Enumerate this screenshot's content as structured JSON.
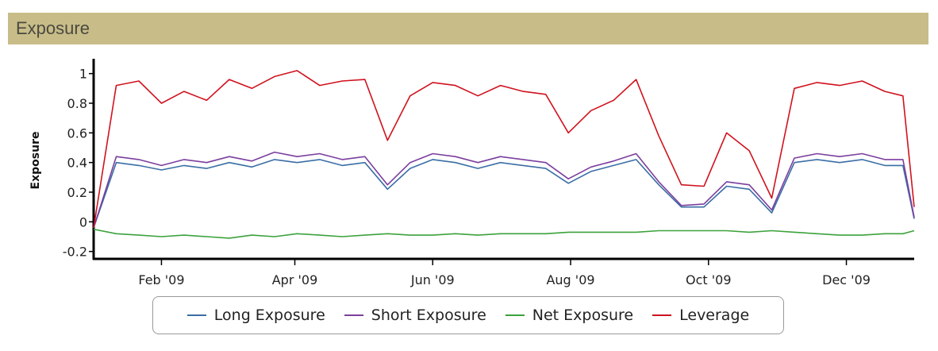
{
  "header": {
    "title": "Exposure"
  },
  "chart_data": {
    "type": "line",
    "ylabel": "Exposure",
    "xlabel": "",
    "ylim": [
      -0.25,
      1.1
    ],
    "yticks": [
      -0.2,
      0,
      0.2,
      0.4,
      0.6,
      0.8,
      1
    ],
    "ytick_labels": [
      "-0.2",
      "0",
      "0.2",
      "0.4",
      "0.6",
      "0.8",
      "1"
    ],
    "xlim": [
      "2009-01-02",
      "2009-12-31"
    ],
    "xticks": [
      "2009-02-01",
      "2009-04-01",
      "2009-06-01",
      "2009-08-01",
      "2009-10-01",
      "2009-12-01"
    ],
    "xtick_labels": [
      "Feb '09",
      "Apr '09",
      "Jun '09",
      "Aug '09",
      "Oct '09",
      "Dec '09"
    ],
    "legend_position": "bottom",
    "grid": false,
    "x": [
      "2009-01-02",
      "2009-01-12",
      "2009-01-22",
      "2009-02-01",
      "2009-02-11",
      "2009-02-21",
      "2009-03-03",
      "2009-03-13",
      "2009-03-23",
      "2009-04-02",
      "2009-04-12",
      "2009-04-22",
      "2009-05-02",
      "2009-05-12",
      "2009-05-22",
      "2009-06-01",
      "2009-06-11",
      "2009-06-21",
      "2009-07-01",
      "2009-07-11",
      "2009-07-21",
      "2009-07-31",
      "2009-08-10",
      "2009-08-20",
      "2009-08-30",
      "2009-09-09",
      "2009-09-19",
      "2009-09-29",
      "2009-10-09",
      "2009-10-19",
      "2009-10-29",
      "2009-11-08",
      "2009-11-18",
      "2009-11-28",
      "2009-12-08",
      "2009-12-18",
      "2009-12-26",
      "2009-12-31"
    ],
    "series": [
      {
        "name": "Long Exposure",
        "color": "#3a6ea5",
        "values": [
          -0.04,
          0.4,
          0.38,
          0.35,
          0.38,
          0.36,
          0.4,
          0.37,
          0.42,
          0.4,
          0.42,
          0.38,
          0.4,
          0.22,
          0.36,
          0.42,
          0.4,
          0.36,
          0.4,
          0.38,
          0.36,
          0.26,
          0.34,
          0.38,
          0.42,
          0.25,
          0.1,
          0.1,
          0.24,
          0.22,
          0.06,
          0.4,
          0.42,
          0.4,
          0.42,
          0.38,
          0.38,
          0.02
        ]
      },
      {
        "name": "Short Exposure",
        "color": "#7b3f9e",
        "values": [
          -0.04,
          0.44,
          0.42,
          0.38,
          0.42,
          0.4,
          0.44,
          0.41,
          0.47,
          0.44,
          0.46,
          0.42,
          0.44,
          0.25,
          0.4,
          0.46,
          0.44,
          0.4,
          0.44,
          0.42,
          0.4,
          0.29,
          0.37,
          0.41,
          0.46,
          0.27,
          0.11,
          0.12,
          0.27,
          0.25,
          0.08,
          0.43,
          0.46,
          0.44,
          0.46,
          0.42,
          0.42,
          0.03
        ]
      },
      {
        "name": "Net Exposure",
        "color": "#3ca23c",
        "values": [
          -0.05,
          -0.08,
          -0.09,
          -0.1,
          -0.09,
          -0.1,
          -0.11,
          -0.09,
          -0.1,
          -0.08,
          -0.09,
          -0.1,
          -0.09,
          -0.08,
          -0.09,
          -0.09,
          -0.08,
          -0.09,
          -0.08,
          -0.08,
          -0.08,
          -0.07,
          -0.07,
          -0.07,
          -0.07,
          -0.06,
          -0.06,
          -0.06,
          -0.06,
          -0.07,
          -0.06,
          -0.07,
          -0.08,
          -0.09,
          -0.09,
          -0.08,
          -0.08,
          -0.06
        ]
      },
      {
        "name": "Leverage",
        "color": "#d0121e",
        "values": [
          -0.04,
          0.92,
          0.95,
          0.8,
          0.88,
          0.82,
          0.96,
          0.9,
          0.98,
          1.02,
          0.92,
          0.95,
          0.96,
          0.55,
          0.85,
          0.94,
          0.92,
          0.85,
          0.92,
          0.88,
          0.86,
          0.6,
          0.75,
          0.82,
          0.96,
          0.58,
          0.25,
          0.24,
          0.6,
          0.48,
          0.16,
          0.9,
          0.94,
          0.92,
          0.95,
          0.88,
          0.85,
          0.1
        ]
      }
    ]
  }
}
